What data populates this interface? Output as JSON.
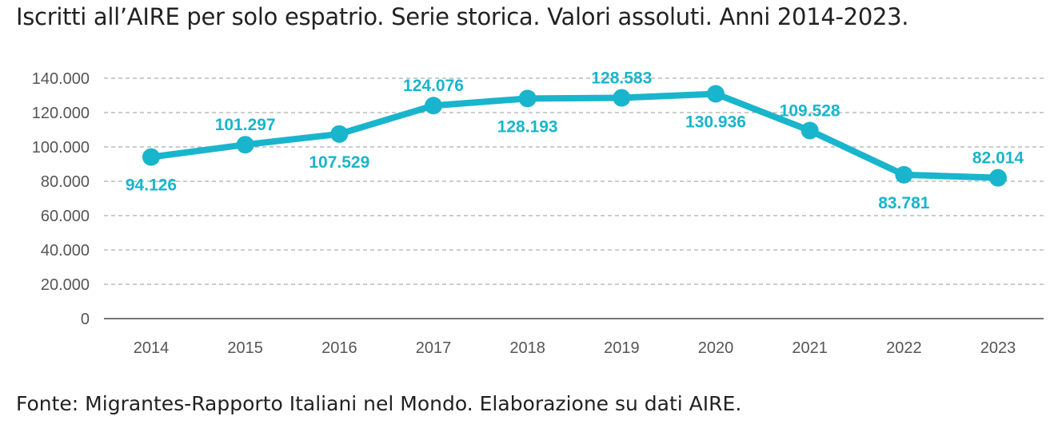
{
  "chart_data": {
    "type": "line",
    "title": "Iscritti all’AIRE per solo espatrio. Serie storica. Valori assoluti. Anni 2014-2023.",
    "source": "Fonte: Migrantes-Rapporto Italiani nel Mondo. Elaborazione su dati AIRE.",
    "categories": [
      "2014",
      "2015",
      "2016",
      "2017",
      "2018",
      "2019",
      "2020",
      "2021",
      "2022",
      "2023"
    ],
    "values": [
      94126,
      101297,
      107529,
      124076,
      128193,
      128583,
      130936,
      109528,
      83781,
      82014
    ],
    "data_labels": [
      "94.126",
      "101.297",
      "107.529",
      "124.076",
      "128.193",
      "128.583",
      "130.936",
      "109.528",
      "83.781",
      "82.014"
    ],
    "y_ticks": [
      0,
      20000,
      40000,
      60000,
      80000,
      100000,
      120000,
      140000
    ],
    "y_tick_labels": [
      "0",
      "20.000",
      "40.000",
      "60.000",
      "80.000",
      "100.000",
      "120.000",
      "140.000"
    ],
    "ylim": [
      0,
      140000
    ],
    "grid": true,
    "legend": "none",
    "series_color": "#19b5cc"
  }
}
